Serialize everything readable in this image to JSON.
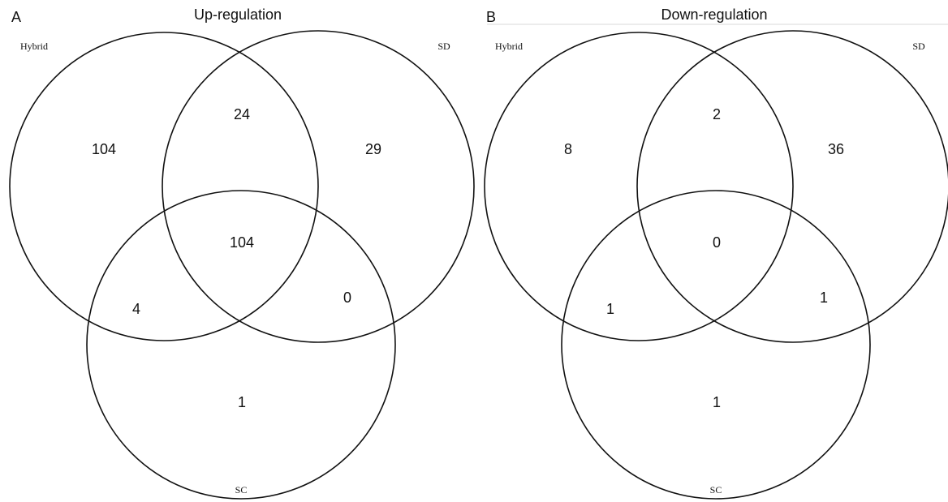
{
  "panels": [
    {
      "letter": "A",
      "title": "Up-regulation",
      "sets": [
        "Hybrid",
        "SD",
        "SC"
      ],
      "regions": [
        "104",
        "24",
        "29",
        "104",
        "4",
        "0",
        "1"
      ]
    },
    {
      "letter": "B",
      "title": "Down-regulation",
      "sets": [
        "Hybrid",
        "SD",
        "SC"
      ],
      "regions": [
        "8",
        "2",
        "36",
        "0",
        "1",
        "1",
        "1"
      ]
    }
  ]
}
